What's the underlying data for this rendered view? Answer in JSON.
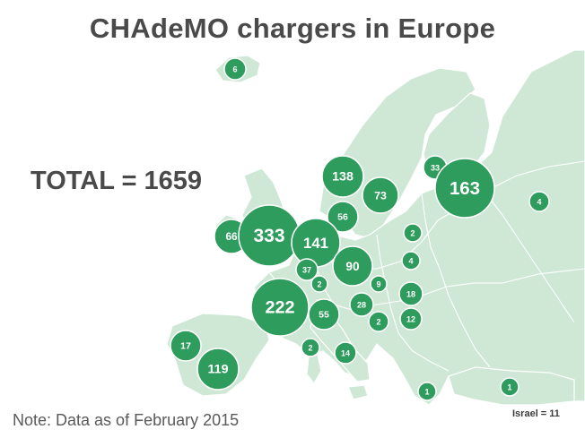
{
  "title": "CHAdeMO chargers in Europe",
  "total": "TOTAL = 1659",
  "note": "Note: Data as of February 2015",
  "israel": "Israel = 11",
  "colors": {
    "land": "#cfe8d6",
    "bubble": "#2e9c5c",
    "text": "#4a4a4a"
  },
  "markers": [
    {
      "value": 6
    },
    {
      "value": 138
    },
    {
      "value": 73
    },
    {
      "value": 33
    },
    {
      "value": 163
    },
    {
      "value": 4
    },
    {
      "value": 56
    },
    {
      "value": 66
    },
    {
      "value": 333
    },
    {
      "value": 141
    },
    {
      "value": 2
    },
    {
      "value": 90
    },
    {
      "value": 4
    },
    {
      "value": 37
    },
    {
      "value": 2
    },
    {
      "value": 9
    },
    {
      "value": 18
    },
    {
      "value": 28
    },
    {
      "value": 222
    },
    {
      "value": 55
    },
    {
      "value": 2
    },
    {
      "value": 12
    },
    {
      "value": 17
    },
    {
      "value": 2
    },
    {
      "value": 14
    },
    {
      "value": 119
    },
    {
      "value": 1
    },
    {
      "value": 1
    }
  ]
}
